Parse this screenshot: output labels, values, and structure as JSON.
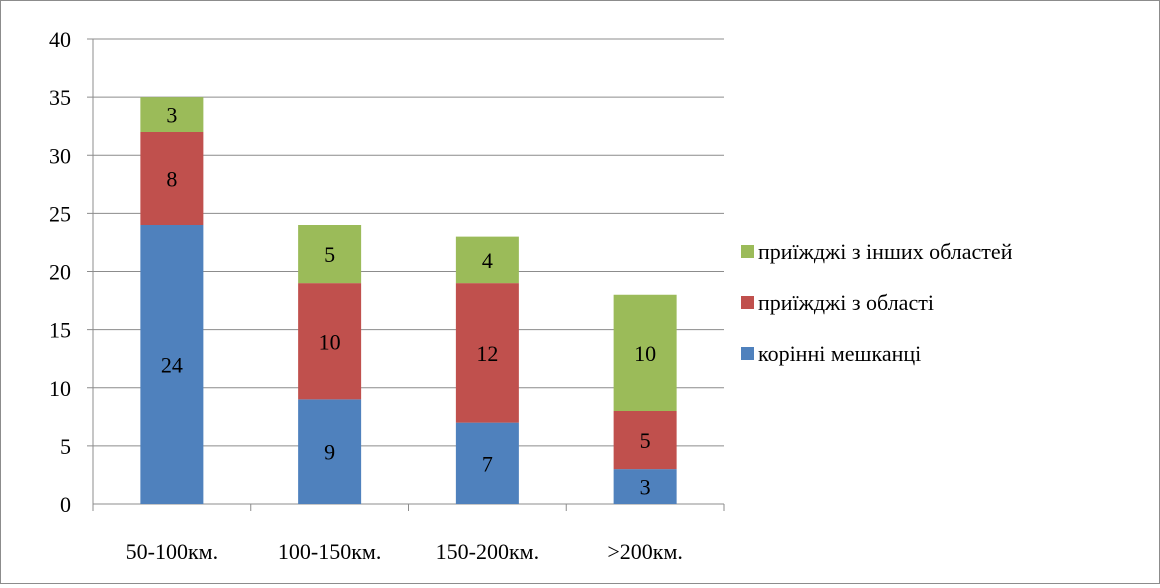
{
  "chart_data": {
    "type": "bar",
    "stacked": true,
    "categories": [
      "50-100км.",
      "100-150км.",
      "150-200км.",
      ">200км."
    ],
    "series": [
      {
        "name": "корінні мешканці",
        "values": [
          24,
          9,
          7,
          3
        ],
        "color": "#4f81bd"
      },
      {
        "name": "приїжджі з області",
        "values": [
          8,
          10,
          12,
          5
        ],
        "color": "#c0504d"
      },
      {
        "name": "приїжджі з інших областей",
        "values": [
          3,
          5,
          4,
          10
        ],
        "color": "#9bbb59"
      }
    ],
    "ylim": [
      0,
      40
    ],
    "yticks": [
      "0",
      "5",
      "10",
      "15",
      "20",
      "25",
      "30",
      "35",
      "40"
    ],
    "grid": true,
    "legend_position": "right",
    "legend_order": [
      2,
      1,
      0
    ]
  }
}
